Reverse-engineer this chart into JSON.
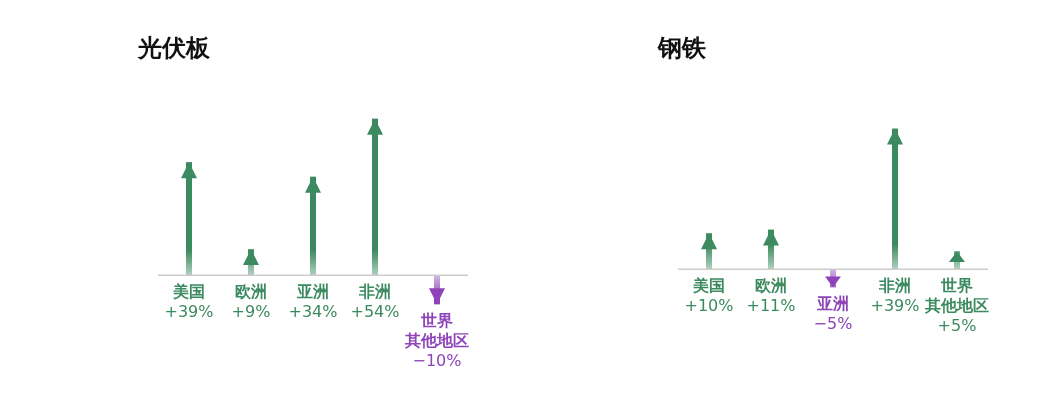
{
  "chart_data": [
    {
      "type": "bar",
      "title": "光伏板",
      "categories": [
        "美国",
        "欧洲",
        "亚洲",
        "非洲",
        "世界其他地区"
      ],
      "values": [
        39,
        9,
        34,
        54,
        -10
      ],
      "colors": [
        "#3c8a5f",
        "#3c8a5f",
        "#3c8a5f",
        "#3c8a5f",
        "#8e44b8"
      ],
      "value_labels": [
        "+39%",
        "+9%",
        "+34%",
        "+54%",
        "−10%"
      ],
      "tick_labels": false
    },
    {
      "type": "bar",
      "title": "钢铁",
      "categories": [
        "美国",
        "欧洲",
        "亚洲",
        "非洲",
        "世界其他地区"
      ],
      "values": [
        10,
        11,
        -5,
        39,
        5
      ],
      "colors": [
        "#3c8a5f",
        "#3c8a5f",
        "#8e44b8",
        "#3c8a5f",
        "#3c8a5f"
      ],
      "value_labels": [
        "+10%",
        "+11%",
        "−5%",
        "+39%",
        "+5%"
      ],
      "tick_labels": false
    }
  ]
}
